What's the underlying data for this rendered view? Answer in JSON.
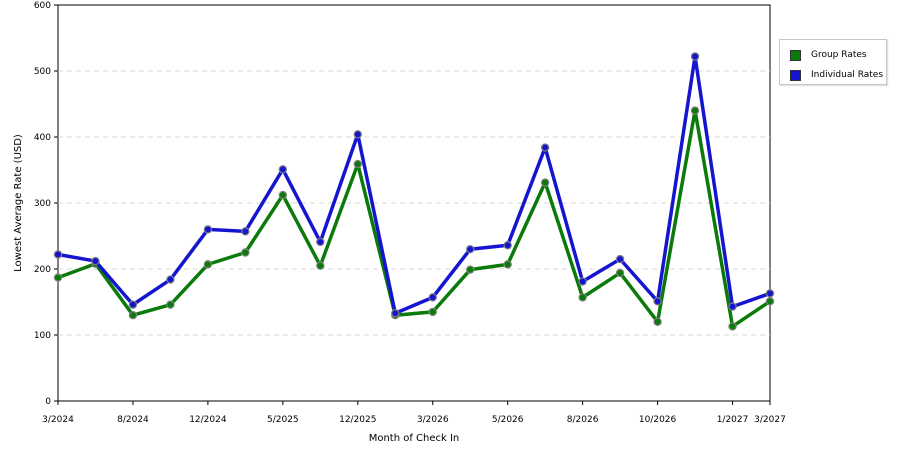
{
  "chart_data": {
    "type": "line",
    "title": "",
    "xlabel": "Month of Check In",
    "ylabel": "Lowest Average Rate (USD)",
    "ylim": [
      0,
      600
    ],
    "yticks": [
      0,
      100,
      200,
      300,
      400,
      500,
      600
    ],
    "x_tick_labels": [
      "3/2024",
      "8/2024",
      "12/2024",
      "5/2025",
      "12/2025",
      "3/2026",
      "5/2026",
      "8/2026",
      "10/2026",
      "1/2027",
      "3/2027"
    ],
    "x_tick_positions": [
      0,
      2,
      4,
      6,
      8,
      10,
      12,
      14,
      16,
      18,
      19
    ],
    "grid": "horizontal dashed",
    "legend_position": "right",
    "series": [
      {
        "name": "Group Rates",
        "color": "#0a7a0a",
        "values": [
          187,
          208,
          130,
          146,
          207,
          225,
          312,
          205,
          359,
          130,
          135,
          199,
          207,
          331,
          157,
          194,
          120,
          440,
          113,
          151
        ]
      },
      {
        "name": "Individual Rates",
        "color": "#1515d0",
        "values": [
          222,
          212,
          146,
          184,
          260,
          257,
          351,
          241,
          404,
          133,
          157,
          230,
          236,
          384,
          181,
          215,
          151,
          522,
          143,
          163
        ]
      }
    ]
  }
}
